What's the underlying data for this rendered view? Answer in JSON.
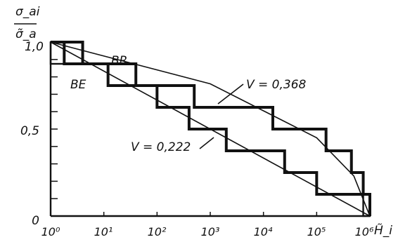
{
  "chart_data": {
    "type": "line",
    "xscale": "log",
    "xlim": [
      1,
      1000000
    ],
    "ylim": [
      0,
      1.0
    ],
    "ylabel_num": "σ_ai",
    "ylabel_den": "σ̃_a",
    "xlabel": "H̃_i",
    "y_ticks": [
      "0",
      "0,5",
      "1,0"
    ],
    "x_ticks": [
      "10⁰",
      "10¹",
      "10²",
      "10³",
      "10⁴",
      "10⁵",
      "10⁶"
    ],
    "annotations": [
      {
        "text": "BR",
        "series": 0
      },
      {
        "text": "BE",
        "series": 1
      },
      {
        "text": "V = 0,368",
        "series": 0
      },
      {
        "text": "V = 0,222",
        "series": 1
      }
    ],
    "series": [
      {
        "label": "BR",
        "steps": [
          {
            "x": 1,
            "y": 1.0
          },
          {
            "x": 4,
            "y": 0.875
          },
          {
            "x": 40,
            "y": 0.75
          },
          {
            "x": 500,
            "y": 0.625
          },
          {
            "x": 15000,
            "y": 0.5
          },
          {
            "x": 150000,
            "y": 0.375
          },
          {
            "x": 450000,
            "y": 0.25
          },
          {
            "x": 750000,
            "y": 0.125
          },
          {
            "x": 1000000,
            "y": 0.0
          }
        ],
        "smooth": [
          [
            1,
            1.0
          ],
          [
            1000,
            0.76
          ],
          [
            100000,
            0.45
          ],
          [
            500000,
            0.23
          ],
          [
            1000000,
            0.0
          ]
        ]
      },
      {
        "label": "BE",
        "steps": [
          {
            "x": 1,
            "y": 1.0
          },
          {
            "x": 1.8,
            "y": 0.875
          },
          {
            "x": 12,
            "y": 0.75
          },
          {
            "x": 100,
            "y": 0.625
          },
          {
            "x": 400,
            "y": 0.5
          },
          {
            "x": 2000,
            "y": 0.375
          },
          {
            "x": 25000,
            "y": 0.25
          },
          {
            "x": 100000,
            "y": 0.125
          },
          {
            "x": 1000000,
            "y": 0.0
          }
        ],
        "smooth": [
          [
            1,
            1.0
          ],
          [
            1000000,
            0.0
          ]
        ]
      }
    ]
  }
}
